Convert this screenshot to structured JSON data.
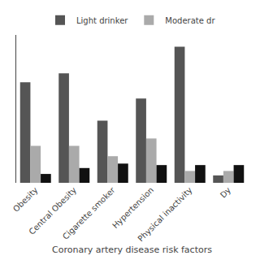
{
  "chart_data": {
    "type": "bar",
    "xlabel": "Coronary artery disease risk factors",
    "categories": [
      "Obesity",
      "Central Obesity",
      "Cigarette smoker",
      "Hypertension",
      "Physical inactivity",
      "Dy"
    ],
    "series": [
      {
        "name": "Light drinker",
        "color": "#555555",
        "values": [
          68,
          74,
          42,
          57,
          92,
          5
        ]
      },
      {
        "name": "Moderate dr",
        "color": "#aaaaaa",
        "values": [
          25,
          25,
          18,
          30,
          8,
          8
        ]
      },
      {
        "color": "#111111",
        "values": [
          6,
          10,
          13,
          12,
          12,
          12
        ]
      }
    ],
    "ylim": [
      0,
      100
    ],
    "grid": false,
    "legend": "top",
    "tick_labels": "x"
  }
}
